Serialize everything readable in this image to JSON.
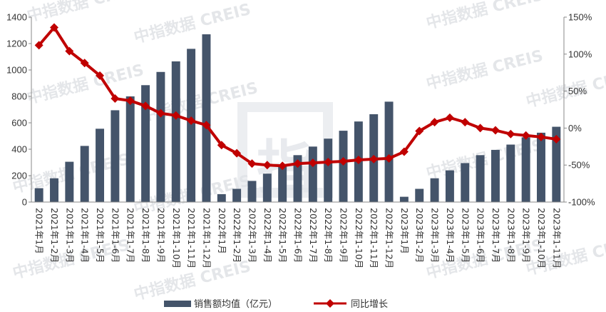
{
  "colors": {
    "bar": "#44546a",
    "line": "#c00000",
    "axis": "#888888"
  },
  "watermark": {
    "text": "中指数据 CREIS",
    "logo_text": "指"
  },
  "legend": [
    {
      "label": "销售额均值（亿元）",
      "icon": "bar-swatch-icon"
    },
    {
      "label": "同比增长",
      "icon": "line-diamond-marker-icon"
    }
  ],
  "chart_data": {
    "type": "bar",
    "categories": [
      "2021年1月",
      "2021年1-2月",
      "2021年1-3月",
      "2021年1-4月",
      "2021年1-5月",
      "2021年1-6月",
      "2021年1-7月",
      "2021年1-8月",
      "2021年1-9月",
      "2021年1-10月",
      "2021年1-11月",
      "2021年1-12月",
      "2022年1月",
      "2022年1-2月",
      "2022年1-3月",
      "2022年1-4月",
      "2022年1-5月",
      "2022年1-6月",
      "2022年1-7月",
      "2022年1-8月",
      "2022年1-9月",
      "2022年1-10月",
      "2022年1-11月",
      "2022年1-12月",
      "2023年1月",
      "2023年1-2月",
      "2023年1-3月",
      "2023年1-4月",
      "2023年1-5月",
      "2023年1-6月",
      "2023年1-7月",
      "2023年1-8月",
      "2023年1-9月",
      "2023年1-10月",
      "2023年1-11月"
    ],
    "series": [
      {
        "name": "销售额均值（亿元）",
        "type": "bar",
        "axis": "left",
        "values": [
          105,
          180,
          305,
          425,
          555,
          695,
          800,
          885,
          985,
          1065,
          1160,
          1270,
          60,
          100,
          160,
          215,
          280,
          355,
          420,
          480,
          540,
          610,
          665,
          760,
          40,
          100,
          180,
          240,
          295,
          355,
          395,
          435,
          490,
          525,
          570
        ]
      },
      {
        "name": "同比增长",
        "type": "line",
        "axis": "right",
        "unit": "%",
        "values": [
          112,
          136,
          104,
          88,
          71,
          40,
          37,
          30,
          20,
          17,
          10,
          4,
          -23,
          -34,
          -48,
          -50,
          -51,
          -48,
          -47,
          -46,
          -45,
          -43,
          -42,
          -41,
          -32,
          -4,
          8,
          14,
          8,
          0,
          -3,
          -8,
          -10,
          -12,
          -15
        ]
      }
    ],
    "left_axis": {
      "min": 0,
      "max": 1400,
      "step": 200,
      "ticks": [
        "0",
        "200",
        "400",
        "600",
        "800",
        "1000",
        "1200",
        "1400"
      ]
    },
    "right_axis": {
      "min": -100,
      "max": 150,
      "step": 50,
      "ticks": [
        "-100%",
        "-50%",
        "0%",
        "50%",
        "100%",
        "150%"
      ]
    },
    "title": "",
    "xlabel": "",
    "ylabel": "",
    "grid": false,
    "legend_position": "bottom"
  }
}
